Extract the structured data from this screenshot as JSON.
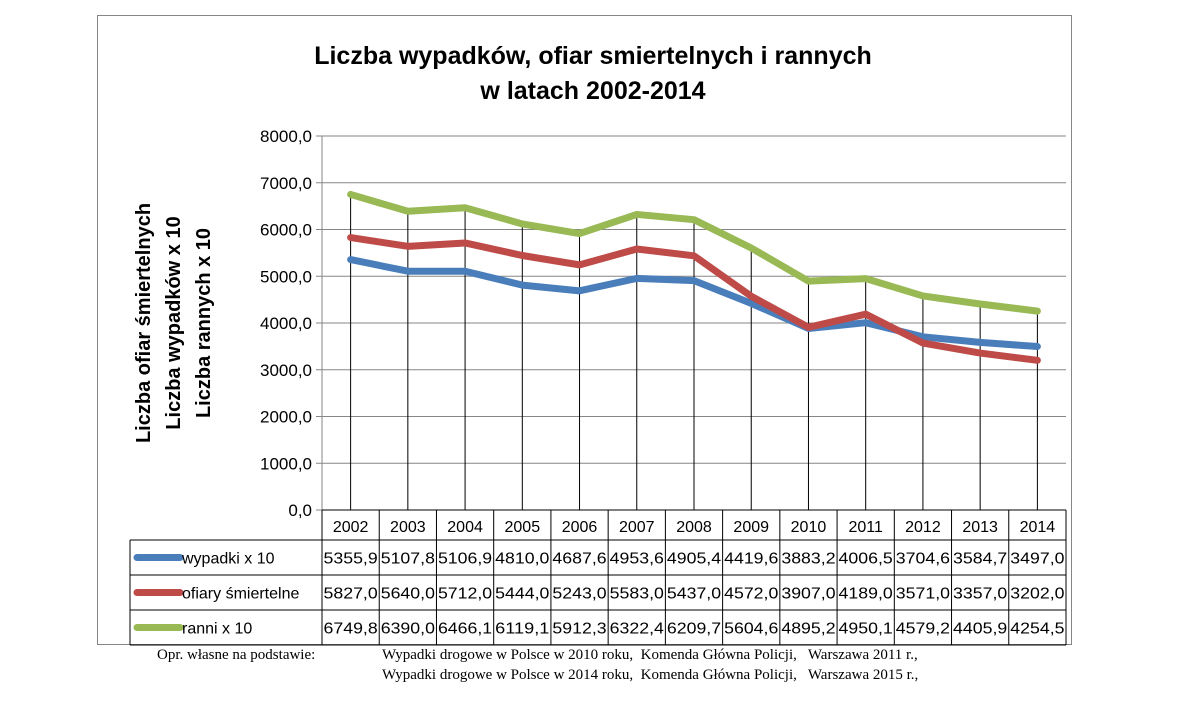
{
  "chart_data": {
    "type": "line",
    "title": [
      "Liczba wypadków, ofiar smiertelnych i rannych",
      "w latach 2002-2014"
    ],
    "ylabel": [
      "Liczba ofiar śmiertelnych",
      "Liczba wypadków    x 10",
      "Liczba rannych    x 10"
    ],
    "xlabel": "",
    "ylim": [
      0,
      8000
    ],
    "yticks": [
      "0,0",
      "1000,0",
      "2000,0",
      "3000,0",
      "4000,0",
      "5000,0",
      "6000,0",
      "7000,0",
      "8000,0"
    ],
    "categories": [
      "2002",
      "2003",
      "2004",
      "2005",
      "2006",
      "2007",
      "2008",
      "2009",
      "2010",
      "2011",
      "2012",
      "2013",
      "2014"
    ],
    "grid": "horizontal",
    "legend": "data-table",
    "series": [
      {
        "name": "wypadki x 10",
        "color": "#4a7ebb",
        "values": [
          5355.9,
          5107.8,
          5106.9,
          4810.0,
          4687.6,
          4953.6,
          4905.4,
          4419.6,
          3883.2,
          4006.5,
          3704.6,
          3584.7,
          3497.0
        ],
        "labels": [
          "5355,9",
          "5107,8",
          "5106,9",
          "4810,0",
          "4687,6",
          "4953,6",
          "4905,4",
          "4419,6",
          "3883,2",
          "4006,5",
          "3704,6",
          "3584,7",
          "3497,0"
        ]
      },
      {
        "name": "ofiary śmiertelne",
        "color": "#be4b48",
        "values": [
          5827,
          5640,
          5712,
          5444,
          5243,
          5583,
          5437,
          4572,
          3907,
          4189,
          3571,
          3357,
          3202
        ],
        "labels": [
          "5827,0",
          "5640,0",
          "5712,0",
          "5444,0",
          "5243,0",
          "5583,0",
          "5437,0",
          "4572,0",
          "3907,0",
          "4189,0",
          "3571,0",
          "3357,0",
          "3202,0"
        ]
      },
      {
        "name": "ranni x 10",
        "color": "#98b954",
        "values": [
          6749.8,
          6390.0,
          6466.1,
          6119.1,
          5912.3,
          6322.4,
          6209.7,
          5604.6,
          4895.2,
          4950.1,
          4579.2,
          4405.9,
          4254.5
        ],
        "labels": [
          "6749,8",
          "6390,0",
          "6466,1",
          "6119,1",
          "5912,3",
          "6322,4",
          "6209,7",
          "5604,6",
          "4895,2",
          "4950,1",
          "4579,2",
          "4405,9",
          "4254,5"
        ]
      }
    ]
  },
  "footer": {
    "prefix": "Opr. własne na podstawie:",
    "sources": [
      "Wypadki drogowe w Polsce w 2010 roku,  Komenda Główna Policji,   Warszawa 2011 r.,",
      "Wypadki drogowe w Polsce w 2014 roku,  Komenda Główna Policji,   Warszawa 2015 r.,"
    ]
  }
}
